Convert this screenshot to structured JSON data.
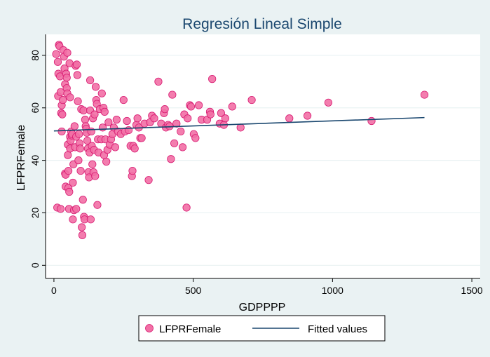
{
  "chart_data": {
    "type": "scatter",
    "title": "Regresión Lineal Simple",
    "xlabel": "GDPPPP",
    "ylabel": "LFPRFemale",
    "xlim": [
      -30,
      1530
    ],
    "ylim": [
      -5,
      88
    ],
    "xticks": [
      0,
      500,
      1000,
      1500
    ],
    "yticks": [
      0,
      20,
      40,
      60,
      80
    ],
    "grid": "horizontal",
    "legend": "bottom",
    "colors": {
      "background": "#eaf2f3",
      "plot_background": "#ffffff",
      "scatter_fill": "#f26fa5",
      "scatter_stroke": "#d81b72",
      "fit_line": "#1a476f",
      "grid": "#eaf2f3",
      "title": "#1a476f"
    },
    "series": [
      {
        "name": "LFPRFemale",
        "kind": "scatter",
        "points": [
          [
            8,
            80.5
          ],
          [
            12,
            22
          ],
          [
            14,
            77.5
          ],
          [
            16,
            73
          ],
          [
            15,
            64.5
          ],
          [
            18,
            84
          ],
          [
            20,
            83.5
          ],
          [
            22,
            72
          ],
          [
            24,
            66
          ],
          [
            24,
            21.5
          ],
          [
            26,
            58
          ],
          [
            28,
            61
          ],
          [
            30,
            57.5
          ],
          [
            32,
            63
          ],
          [
            28,
            51
          ],
          [
            34,
            82
          ],
          [
            36,
            79.5
          ],
          [
            38,
            75
          ],
          [
            40,
            69
          ],
          [
            40,
            35
          ],
          [
            42,
            34.5
          ],
          [
            42,
            30
          ],
          [
            44,
            73
          ],
          [
            46,
            71.5
          ],
          [
            46,
            67.5
          ],
          [
            48,
            81
          ],
          [
            48,
            65.5
          ],
          [
            50,
            46
          ],
          [
            50,
            42
          ],
          [
            52,
            29.5
          ],
          [
            52,
            36
          ],
          [
            54,
            21.5
          ],
          [
            55,
            28
          ],
          [
            56,
            77
          ],
          [
            58,
            49
          ],
          [
            58,
            44.5
          ],
          [
            58,
            64
          ],
          [
            60,
            47.5
          ],
          [
            62,
            51
          ],
          [
            64,
            49.5
          ],
          [
            66,
            50
          ],
          [
            68,
            31.5
          ],
          [
            68,
            17.5
          ],
          [
            70,
            38.5
          ],
          [
            72,
            21
          ],
          [
            74,
            53
          ],
          [
            76,
            45
          ],
          [
            78,
            76
          ],
          [
            80,
            49
          ],
          [
            80,
            21.5
          ],
          [
            82,
            76.5
          ],
          [
            84,
            72.5
          ],
          [
            86,
            62.5
          ],
          [
            88,
            40
          ],
          [
            90,
            50
          ],
          [
            92,
            46.5
          ],
          [
            94,
            44.5
          ],
          [
            96,
            36
          ],
          [
            98,
            59.5
          ],
          [
            100,
            14.5
          ],
          [
            102,
            11.5
          ],
          [
            104,
            25
          ],
          [
            106,
            59
          ],
          [
            108,
            18.5
          ],
          [
            110,
            17.5
          ],
          [
            112,
            55.5
          ],
          [
            114,
            53
          ],
          [
            116,
            52
          ],
          [
            118,
            50.5
          ],
          [
            120,
            47.5
          ],
          [
            122,
            44.5
          ],
          [
            124,
            35.5
          ],
          [
            126,
            33.5
          ],
          [
            128,
            43
          ],
          [
            130,
            70.5
          ],
          [
            130,
            59
          ],
          [
            132,
            17.5
          ],
          [
            134,
            51
          ],
          [
            136,
            45.5
          ],
          [
            138,
            38.5
          ],
          [
            140,
            56
          ],
          [
            142,
            35.5
          ],
          [
            144,
            44
          ],
          [
            146,
            57.5
          ],
          [
            148,
            34
          ],
          [
            150,
            68
          ],
          [
            152,
            63
          ],
          [
            154,
            61.5
          ],
          [
            156,
            23
          ],
          [
            158,
            48
          ],
          [
            160,
            43
          ],
          [
            165,
            59.5
          ],
          [
            170,
            48
          ],
          [
            172,
            65.5
          ],
          [
            175,
            52.5
          ],
          [
            178,
            60
          ],
          [
            180,
            42
          ],
          [
            182,
            58.5
          ],
          [
            185,
            48
          ],
          [
            188,
            39.5
          ],
          [
            192,
            44
          ],
          [
            196,
            54.5
          ],
          [
            200,
            46
          ],
          [
            205,
            48
          ],
          [
            210,
            50
          ],
          [
            215,
            52.5
          ],
          [
            220,
            45
          ],
          [
            225,
            55.5
          ],
          [
            230,
            51
          ],
          [
            240,
            50
          ],
          [
            250,
            63
          ],
          [
            255,
            51
          ],
          [
            262,
            55
          ],
          [
            268,
            51.5
          ],
          [
            275,
            45.5
          ],
          [
            280,
            34
          ],
          [
            282,
            36
          ],
          [
            285,
            45.5
          ],
          [
            290,
            44.5
          ],
          [
            296,
            53.5
          ],
          [
            300,
            56
          ],
          [
            305,
            52.5
          ],
          [
            310,
            48.5
          ],
          [
            315,
            48.5
          ],
          [
            325,
            54
          ],
          [
            340,
            32.5
          ],
          [
            345,
            54.5
          ],
          [
            352,
            57
          ],
          [
            360,
            56
          ],
          [
            375,
            70
          ],
          [
            385,
            54
          ],
          [
            395,
            58
          ],
          [
            398,
            59.5
          ],
          [
            402,
            52.5
          ],
          [
            410,
            53.5
          ],
          [
            415,
            53
          ],
          [
            420,
            40.5
          ],
          [
            425,
            65
          ],
          [
            432,
            46.5
          ],
          [
            440,
            54
          ],
          [
            455,
            51
          ],
          [
            462,
            45
          ],
          [
            468,
            57.5
          ],
          [
            476,
            22
          ],
          [
            480,
            56
          ],
          [
            488,
            61
          ],
          [
            492,
            60.5
          ],
          [
            502,
            50
          ],
          [
            508,
            48.5
          ],
          [
            520,
            61
          ],
          [
            530,
            55.5
          ],
          [
            550,
            55.5
          ],
          [
            560,
            58.5
          ],
          [
            562,
            57.5
          ],
          [
            568,
            71
          ],
          [
            595,
            54
          ],
          [
            600,
            58
          ],
          [
            610,
            53.5
          ],
          [
            615,
            56
          ],
          [
            640,
            60.5
          ],
          [
            670,
            52.5
          ],
          [
            710,
            63
          ],
          [
            845,
            56
          ],
          [
            910,
            57
          ],
          [
            985,
            62
          ],
          [
            1140,
            55
          ],
          [
            1330,
            65
          ]
        ]
      },
      {
        "name": "Fitted values",
        "kind": "line",
        "x": [
          0,
          1330
        ],
        "y": [
          51.2,
          56.3
        ]
      }
    ]
  }
}
